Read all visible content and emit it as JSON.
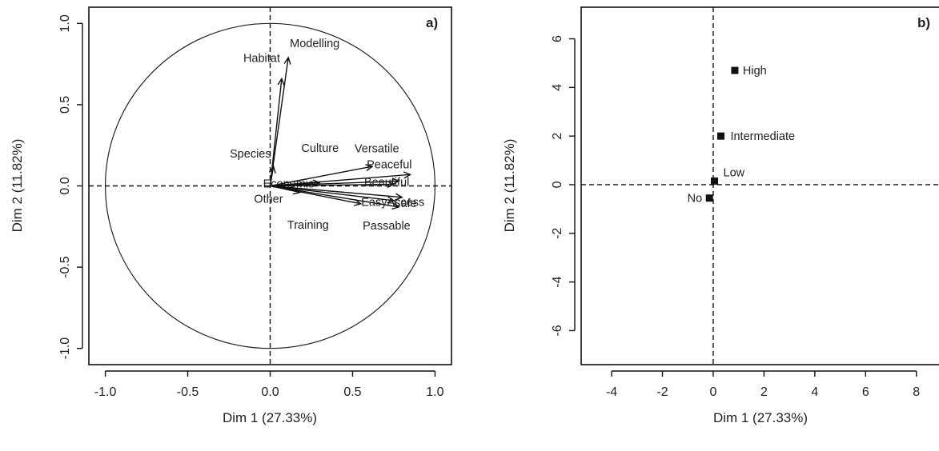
{
  "chart_data": [
    {
      "type": "scatter",
      "subtype": "pca-variables-factor-map",
      "panel_label": "a)",
      "xlabel": "Dim 1 (27.33%)",
      "ylabel": "Dim 2 (11.82%)",
      "xlim": [
        -1.1,
        1.1
      ],
      "ylim": [
        -1.1,
        1.1
      ],
      "xticks": [
        "-1.0",
        "-0.5",
        "0.0",
        "0.5",
        "1.0"
      ],
      "yticks": [
        "-1.0",
        "-0.5",
        "0.0",
        "0.5",
        "1.0"
      ],
      "unit_circle": true,
      "reference_lines": {
        "x": 0,
        "y": 0
      },
      "variables": [
        {
          "name": "Modelling",
          "x": 0.11,
          "y": 0.79
        },
        {
          "name": "Habitat",
          "x": 0.07,
          "y": 0.66
        },
        {
          "name": "Species",
          "x": 0.02,
          "y": 0.12
        },
        {
          "name": "Economic",
          "x": 0.3,
          "y": 0.02
        },
        {
          "name": "Culture",
          "x": 0.62,
          "y": 0.12
        },
        {
          "name": "Versatile",
          "x": 0.85,
          "y": 0.07
        },
        {
          "name": "Peaceful",
          "x": 0.78,
          "y": 0.03
        },
        {
          "name": "Beautiful",
          "x": 0.75,
          "y": 0.01
        },
        {
          "name": "EasyAccess",
          "x": 0.8,
          "y": -0.07
        },
        {
          "name": "Safe",
          "x": 0.75,
          "y": -0.09
        },
        {
          "name": "Passable",
          "x": 0.78,
          "y": -0.13
        },
        {
          "name": "Training",
          "x": 0.55,
          "y": -0.11
        },
        {
          "name": "Other",
          "x": 0.18,
          "y": -0.04
        }
      ]
    },
    {
      "type": "scatter",
      "subtype": "pca-supplementary-categories",
      "panel_label": "b)",
      "xlabel": "Dim 1 (27.33%)",
      "ylabel": "Dim 2 (11.82%)",
      "xlim": [
        -5.2,
        9.3
      ],
      "ylim": [
        -7.4,
        7.3
      ],
      "xticks": [
        "-4",
        "-2",
        "0",
        "2",
        "4",
        "6",
        "8"
      ],
      "yticks": [
        "-6",
        "-4",
        "-2",
        "0",
        "2",
        "4",
        "6"
      ],
      "reference_lines": {
        "x": 0,
        "y": 0
      },
      "points": [
        {
          "name": "High",
          "x": 0.85,
          "y": 4.7
        },
        {
          "name": "Intermediate",
          "x": 0.3,
          "y": 2.0
        },
        {
          "name": "Low",
          "x": 0.05,
          "y": 0.15
        },
        {
          "name": "No",
          "x": -0.15,
          "y": -0.55
        }
      ]
    }
  ]
}
